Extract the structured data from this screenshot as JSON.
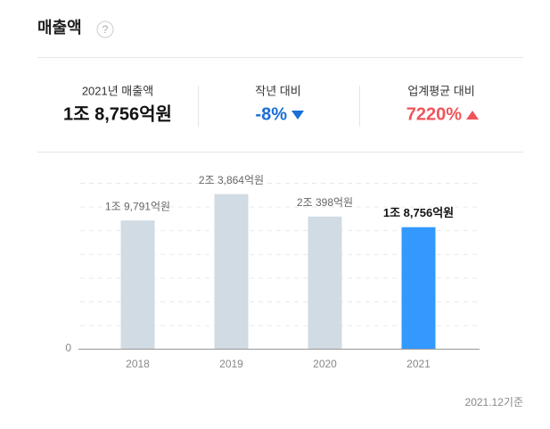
{
  "header": {
    "title": "매출액",
    "help": "?"
  },
  "summary": [
    {
      "label": "2021년 매출액",
      "value": "1조 8,756억원"
    },
    {
      "label": "작년 대비",
      "value": "-8%"
    },
    {
      "label": "업계평균 대비",
      "value": "7220%"
    }
  ],
  "chart_data": {
    "type": "bar",
    "categories": [
      "2018",
      "2019",
      "2020",
      "2021"
    ],
    "values": [
      19791,
      23864,
      20398,
      18756
    ],
    "value_labels": [
      "1조 9,791억원",
      "2조 3,864억원",
      "2조 398억원",
      "1조 8,756억원"
    ],
    "colors": [
      "#d1dbe3",
      "#d1dbe3",
      "#d1dbe3",
      "#3399ff"
    ],
    "ylim": [
      0,
      25600
    ],
    "yticks": [
      0
    ]
  },
  "footnote": "2021.12기준"
}
